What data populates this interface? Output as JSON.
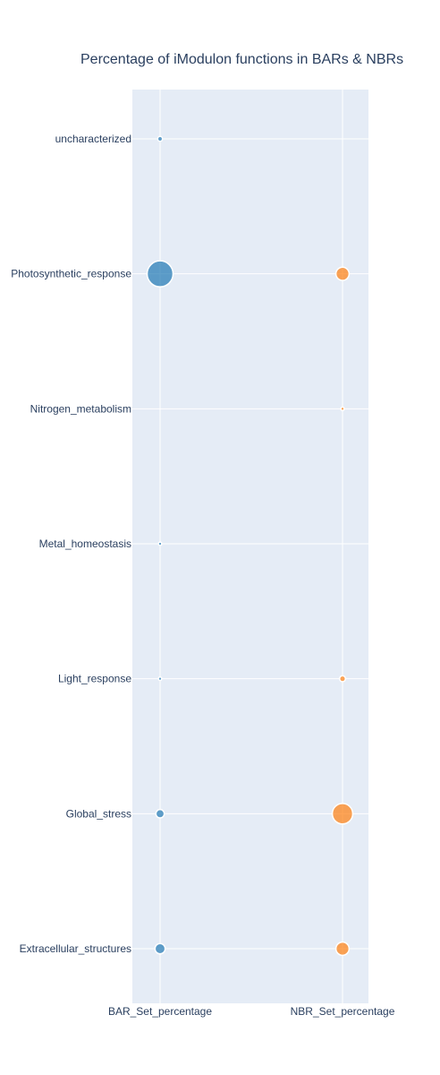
{
  "chart_data": {
    "type": "scatter",
    "title": "Percentage of iModulon functions in BARs & NBRs",
    "x_categories": [
      "BAR_Set_percentage",
      "NBR_Set_percentage"
    ],
    "y_categories": [
      "Extracellular_structures",
      "Global_stress",
      "Light_response",
      "Metal_homeostasis",
      "Nitrogen_metabolism",
      "Photosynthetic_response",
      "uncharacterized"
    ],
    "series": [
      {
        "x": "BAR_Set_percentage",
        "color": "#1f77b4",
        "points": [
          {
            "y": "Extracellular_structures",
            "value": 9
          },
          {
            "y": "Global_stress",
            "value": 6
          },
          {
            "y": "Light_response",
            "value": 1
          },
          {
            "y": "Metal_homeostasis",
            "value": 1
          },
          {
            "y": "Photosynthetic_response",
            "value": 58
          },
          {
            "y": "uncharacterized",
            "value": 2
          }
        ]
      },
      {
        "x": "NBR_Set_percentage",
        "color": "#ff7f0e",
        "points": [
          {
            "y": "Extracellular_structures",
            "value": 15
          },
          {
            "y": "Global_stress",
            "value": 36
          },
          {
            "y": "Light_response",
            "value": 3
          },
          {
            "y": "Nitrogen_metabolism",
            "value": 1
          },
          {
            "y": "Photosynthetic_response",
            "value": 15
          }
        ]
      }
    ],
    "grid": true
  }
}
